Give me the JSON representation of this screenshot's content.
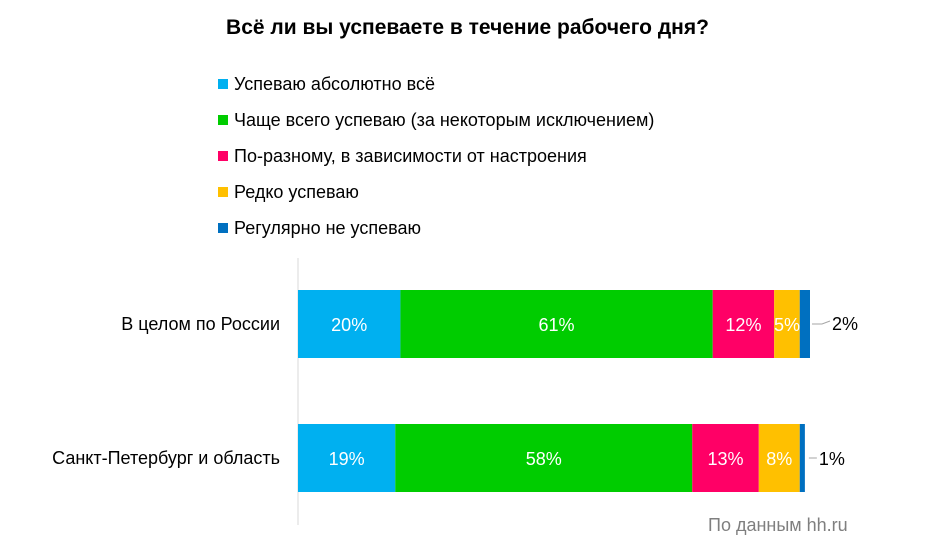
{
  "chart_data": {
    "type": "bar",
    "orientation": "horizontal",
    "stacked": true,
    "title": "Всё ли вы успеваете в течение рабочего дня?",
    "categories": [
      "В целом по России",
      "Санкт-Петербург и область"
    ],
    "series": [
      {
        "name": "Успеваю абсолютно всё",
        "color": "#00b0f0",
        "values": [
          20,
          19
        ],
        "labels": [
          "20%",
          "19%"
        ]
      },
      {
        "name": "Чаще всего успеваю (за некоторым исключением)",
        "color": "#00cc00",
        "values": [
          61,
          58
        ],
        "labels": [
          "61%",
          "58%"
        ]
      },
      {
        "name": "По-разному, в зависимости от настроения",
        "color": "#ff0066",
        "values": [
          12,
          13
        ],
        "labels": [
          "12%",
          "13%"
        ]
      },
      {
        "name": "Редко успеваю",
        "color": "#ffc000",
        "values": [
          5,
          8
        ],
        "labels": [
          "5%",
          "8%"
        ]
      },
      {
        "name": "Регулярно не успеваю",
        "color": "#0070c0",
        "values": [
          2,
          1
        ],
        "labels": [
          "2%",
          "1%"
        ]
      }
    ],
    "xlim": [
      0,
      100
    ],
    "grid": false,
    "legend_position": "top"
  },
  "source": "По данным hh.ru"
}
